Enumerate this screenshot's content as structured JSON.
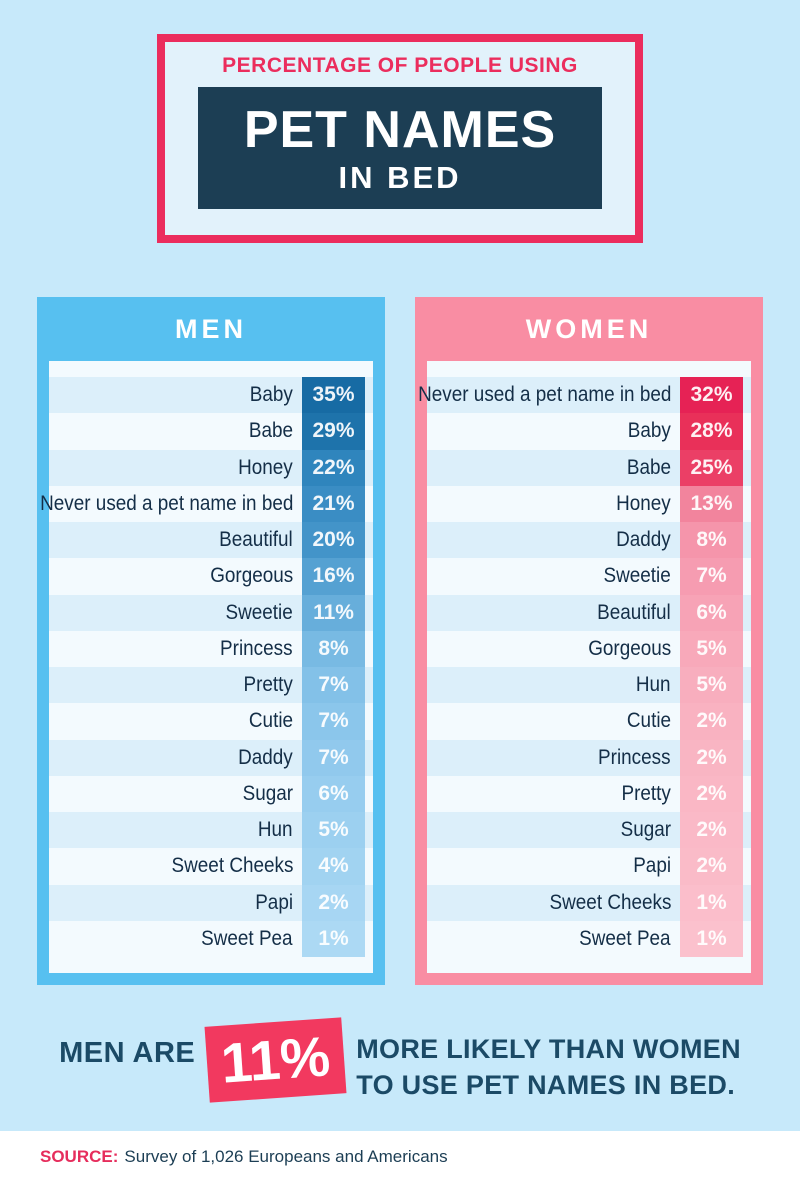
{
  "page": {
    "background": "#C7E9FA"
  },
  "header": {
    "eyebrow": "PERCENTAGE OF PEOPLE USING",
    "title_line1": "PET NAMES",
    "title_line2": "IN BED",
    "border_color": "#EB2D5D",
    "box_color": "#1C3E54"
  },
  "chart_data": [
    {
      "type": "bar",
      "title": "MEN",
      "unit": "%",
      "accent": "#57C0F0",
      "panel_background": "#F3FAFE",
      "row_stripe": "#DCEFFA",
      "categories": [
        "Baby",
        "Babe",
        "Honey",
        "Never used a pet name in bed",
        "Beautiful",
        "Gorgeous",
        "Sweetie",
        "Princess",
        "Pretty",
        "Cutie",
        "Daddy",
        "Sugar",
        "Hun",
        "Sweet Cheeks",
        "Papi",
        "Sweet Pea"
      ],
      "values": [
        35,
        29,
        22,
        21,
        20,
        16,
        11,
        8,
        7,
        7,
        7,
        6,
        5,
        4,
        2,
        1
      ],
      "bar_colors": [
        "#176BA4",
        "#1E73AB",
        "#2F85BD",
        "#3A8DC4",
        "#4394C9",
        "#55A1D2",
        "#67AEDB",
        "#78BAE3",
        "#83C1E8",
        "#8BC6EB",
        "#91C9ED",
        "#97CDEF",
        "#9CD0F0",
        "#A1D3F1",
        "#A7D6F3",
        "#ACD9F4"
      ]
    },
    {
      "type": "bar",
      "title": "WOMEN",
      "unit": "%",
      "accent": "#F98DA3",
      "panel_background": "#F3FAFE",
      "row_stripe": "#DCEFFA",
      "categories": [
        "Never used a pet name in bed",
        "Baby",
        "Babe",
        "Honey",
        "Daddy",
        "Sweetie",
        "Beautiful",
        "Gorgeous",
        "Hun",
        "Cutie",
        "Princess",
        "Pretty",
        "Sugar",
        "Papi",
        "Sweet Cheeks",
        "Sweet Pea"
      ],
      "values": [
        32,
        28,
        25,
        13,
        8,
        7,
        6,
        5,
        5,
        2,
        2,
        2,
        2,
        2,
        1,
        1
      ],
      "bar_colors": [
        "#E62255",
        "#E93059",
        "#EB3F66",
        "#F2849D",
        "#F595AB",
        "#F69CB1",
        "#F7A3B6",
        "#F8A9BA",
        "#F8AEBE",
        "#F9B2C1",
        "#F9B5C3",
        "#FAB7C5",
        "#FAB9C7",
        "#FABBC8",
        "#FBBECB",
        "#FBC1CD"
      ]
    }
  ],
  "stat": {
    "prefix": "MEN ARE",
    "highlight": "11%",
    "line1": "MORE LIKELY THAN WOMEN",
    "line2": "TO USE PET NAMES IN BED.",
    "box_color": "#F2395F",
    "text_color": "#1B4A66"
  },
  "source": {
    "label": "SOURCE:",
    "text": "Survey of 1,026 Europeans and Americans",
    "label_color": "#E62D5C"
  }
}
